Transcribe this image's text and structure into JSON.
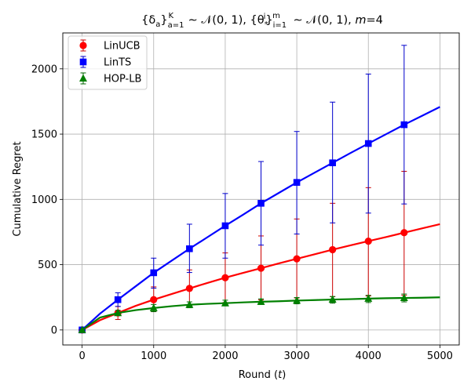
{
  "chart_data": {
    "type": "line",
    "title": "{δ_a}_{a=1}^K ∼ 𝒩(0, 1), {θ_*^i}_{i=1}^m ∼ 𝒩(0, 1), m=4",
    "title_parts": {
      "delta": "{δ",
      "delta_sub": "a",
      "delta_close": "}",
      "delta_sub2": "a=1",
      "delta_sup": "K",
      "normal1": " ∼ 𝒩(0, 1), {θ",
      "theta_sub": "*",
      "theta_sup": "i",
      "theta_close": "}",
      "theta_sub2": "i=1",
      "theta_sup2": "m",
      "normal2": " ∼ 𝒩(0, 1), ",
      "m_label": "m",
      "m_value": "=4"
    },
    "xlabel_parts": {
      "text": "Round (",
      "var": "t",
      "close": ")"
    },
    "ylabel": "Cumulative Regret",
    "xlim": [
      -270,
      5270
    ],
    "ylim": [
      -115,
      2275
    ],
    "x_ticks": [
      0,
      1000,
      2000,
      3000,
      4000,
      5000
    ],
    "y_ticks": [
      0,
      500,
      1000,
      1500,
      2000
    ],
    "x_tick_labels": [
      "0",
      "1000",
      "2000",
      "3000",
      "4000",
      "5000"
    ],
    "y_tick_labels": [
      "0",
      "500",
      "1000",
      "1500",
      "2000"
    ],
    "grid": true,
    "legend_position": "top-left",
    "marker_x": [
      0,
      500,
      1000,
      1500,
      2000,
      2500,
      3000,
      3500,
      4000,
      4500
    ],
    "series": [
      {
        "name": "LinUCB",
        "color": "#ff0000",
        "error_color": "#cc0000",
        "marker": "circle",
        "curve_x": [
          0,
          250,
          500,
          750,
          1000,
          1250,
          1500,
          1750,
          2000,
          2250,
          2500,
          2750,
          3000,
          3250,
          3500,
          3750,
          4000,
          4250,
          4500,
          4750,
          5000
        ],
        "curve_y": [
          0,
          75,
          130,
          185,
          232,
          275,
          318,
          360,
          400,
          437,
          473,
          510,
          545,
          580,
          615,
          648,
          680,
          712,
          745,
          778,
          810
        ],
        "marker_y": [
          0,
          130,
          232,
          318,
          400,
          473,
          545,
          615,
          680,
          745
        ],
        "err_low": [
          0,
          80,
          140,
          185,
          210,
          230,
          245,
          255,
          260,
          265
        ],
        "err_high": [
          0,
          180,
          330,
          460,
          590,
          720,
          850,
          970,
          1090,
          1215
        ]
      },
      {
        "name": "LinTS",
        "color": "#0000ff",
        "error_color": "#0000cc",
        "marker": "square",
        "curve_x": [
          0,
          250,
          500,
          750,
          1000,
          1250,
          1500,
          1750,
          2000,
          2250,
          2500,
          2750,
          3000,
          3250,
          3500,
          3750,
          4000,
          4250,
          4500,
          4750,
          5000
        ],
        "curve_y": [
          0,
          125,
          232,
          335,
          438,
          530,
          622,
          710,
          798,
          883,
          970,
          1050,
          1130,
          1205,
          1280,
          1355,
          1428,
          1500,
          1572,
          1640,
          1708
        ],
        "marker_y": [
          0,
          232,
          438,
          622,
          798,
          970,
          1130,
          1280,
          1428,
          1572
        ],
        "err_low": [
          0,
          180,
          320,
          440,
          550,
          650,
          735,
          820,
          895,
          965
        ],
        "err_high": [
          0,
          285,
          550,
          810,
          1045,
          1290,
          1520,
          1745,
          1960,
          2180
        ]
      },
      {
        "name": "HOP-LB",
        "color": "#008000",
        "error_color": "#006400",
        "marker": "triangle",
        "curve_x": [
          0,
          250,
          500,
          750,
          1000,
          1250,
          1500,
          1750,
          2000,
          2250,
          2500,
          2750,
          3000,
          3250,
          3500,
          3750,
          4000,
          4250,
          4500,
          4750,
          5000
        ],
        "curve_y": [
          0,
          95,
          130,
          152,
          168,
          182,
          193,
          200,
          205,
          211,
          216,
          220,
          225,
          229,
          233,
          236,
          240,
          243,
          245,
          247,
          250
        ],
        "marker_y": [
          0,
          130,
          168,
          193,
          205,
          216,
          225,
          233,
          240,
          245
        ],
        "err_low": [
          0,
          110,
          140,
          170,
          185,
          195,
          200,
          205,
          210,
          215
        ],
        "err_high": [
          0,
          150,
          195,
          215,
          228,
          238,
          248,
          256,
          265,
          275
        ]
      }
    ]
  }
}
